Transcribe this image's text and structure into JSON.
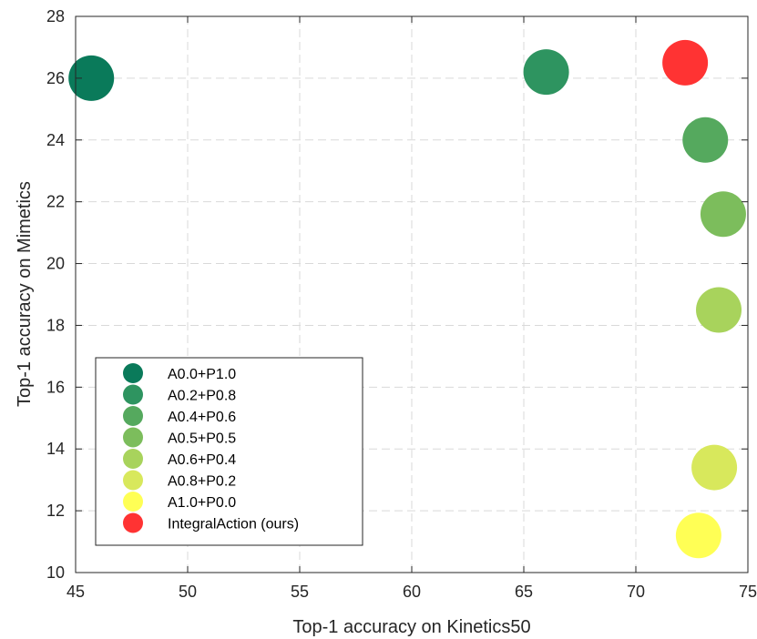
{
  "chart_data": {
    "type": "scatter",
    "title": "",
    "xlabel": "Top-1 accuracy on Kinetics50",
    "ylabel": "Top-1 accuracy on Mimetics",
    "xlim": [
      45,
      75
    ],
    "ylim": [
      10,
      28
    ],
    "xticks": [
      45,
      50,
      55,
      60,
      65,
      70,
      75
    ],
    "yticks": [
      10,
      12,
      14,
      16,
      18,
      20,
      22,
      24,
      26,
      28
    ],
    "grid": true,
    "legend_position": "bottom-left",
    "series": [
      {
        "name": "A0.0+P1.0",
        "x": 45.7,
        "y": 26.0,
        "color": "#0a7a5a"
      },
      {
        "name": "A0.2+P0.8",
        "x": 66.0,
        "y": 26.2,
        "color": "#2e9460"
      },
      {
        "name": "A0.4+P0.6",
        "x": 73.1,
        "y": 24.0,
        "color": "#55a95e"
      },
      {
        "name": "A0.5+P0.5",
        "x": 73.9,
        "y": 21.6,
        "color": "#7cbd5c"
      },
      {
        "name": "A0.6+P0.4",
        "x": 73.7,
        "y": 18.5,
        "color": "#a8d35c"
      },
      {
        "name": "A0.8+P0.2",
        "x": 73.5,
        "y": 13.4,
        "color": "#d8e85c"
      },
      {
        "name": "A1.0+P0.0",
        "x": 72.8,
        "y": 11.2,
        "color": "#ffff55"
      },
      {
        "name": "IntegralAction (ours)",
        "x": 72.2,
        "y": 26.5,
        "color": "#ff3333"
      }
    ]
  }
}
